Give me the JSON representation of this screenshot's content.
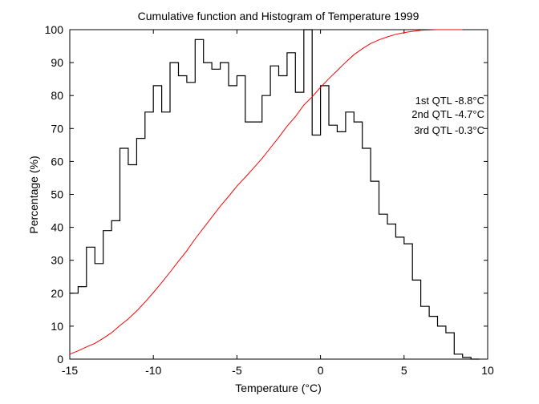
{
  "chart_data": {
    "type": "line",
    "title": "Cumulative function and Histogram of Temperature 1999",
    "xlabel": "Temperature (°C)",
    "ylabel": "Percentage (%)",
    "xlim": [
      -15,
      10
    ],
    "ylim": [
      0,
      100
    ],
    "xticks": [
      -15,
      -10,
      -5,
      0,
      5,
      10
    ],
    "yticks": [
      0,
      10,
      20,
      30,
      40,
      50,
      60,
      70,
      80,
      90,
      100
    ],
    "series": [
      {
        "name": "Histogram",
        "style": "step",
        "color": "#000000",
        "bin_width": 0.5,
        "x_left": [
          -15,
          -14.5,
          -14,
          -13.5,
          -13,
          -12.5,
          -12,
          -11.5,
          -11,
          -10.5,
          -10,
          -9.5,
          -9,
          -8.5,
          -8,
          -7.5,
          -7,
          -6.5,
          -6,
          -5.5,
          -5,
          -4.5,
          -4,
          -3.5,
          -3,
          -2.5,
          -2,
          -1.5,
          -1,
          -0.5,
          0,
          0.5,
          1,
          1.5,
          2,
          2.5,
          3,
          3.5,
          4,
          4.5,
          5,
          5.5,
          6,
          6.5,
          7,
          7.5,
          8,
          8.5,
          9
        ],
        "values": [
          20,
          22,
          34,
          29,
          39,
          42,
          64,
          59,
          67,
          75,
          83,
          75,
          90,
          86,
          84,
          97,
          90,
          88,
          90,
          83,
          86,
          72,
          72,
          80,
          89,
          86,
          93,
          81,
          100,
          68,
          83,
          71,
          69,
          75,
          72,
          64,
          54,
          44,
          41,
          37,
          35,
          24,
          16,
          13,
          10,
          8,
          1.5,
          0.5,
          0
        ]
      },
      {
        "name": "Cumulative",
        "style": "line",
        "color": "#ff0000",
        "x": [
          -15,
          -14.5,
          -14,
          -13.5,
          -13,
          -12.5,
          -12,
          -11.5,
          -11,
          -10.5,
          -10,
          -9.5,
          -9,
          -8.5,
          -8,
          -7.5,
          -7,
          -6.5,
          -6,
          -5.5,
          -5,
          -4.5,
          -4,
          -3.5,
          -3,
          -2.5,
          -2,
          -1.5,
          -1,
          -0.5,
          0,
          0.5,
          1,
          1.5,
          2,
          2.5,
          3,
          3.5,
          4,
          4.5,
          5,
          5.5,
          6,
          6.5,
          7,
          7.5,
          8,
          8.5
        ],
        "values": [
          1.5,
          2.5,
          3.7,
          4.8,
          6.3,
          8.0,
          10.2,
          12.2,
          14.6,
          17.3,
          20.2,
          23.2,
          26.4,
          29.7,
          32.9,
          36.5,
          39.8,
          43.1,
          46.4,
          49.4,
          52.5,
          55.2,
          58.0,
          60.9,
          64.1,
          67.3,
          70.7,
          73.6,
          77.1,
          79.6,
          82.5,
          85.1,
          87.6,
          90.1,
          92.4,
          94.2,
          95.8,
          96.9,
          97.8,
          98.6,
          99.1,
          99.5,
          99.8,
          99.9,
          100,
          100,
          100,
          100
        ]
      }
    ],
    "annotations": [
      {
        "text": "1st QTL -8.8°C",
        "color": "#dd0000"
      },
      {
        "text": "2nd QTL -4.7°C",
        "color": "#dd0000"
      },
      {
        "text": "3rd QTL -0.3°C",
        "color": "#dd0000"
      }
    ]
  }
}
